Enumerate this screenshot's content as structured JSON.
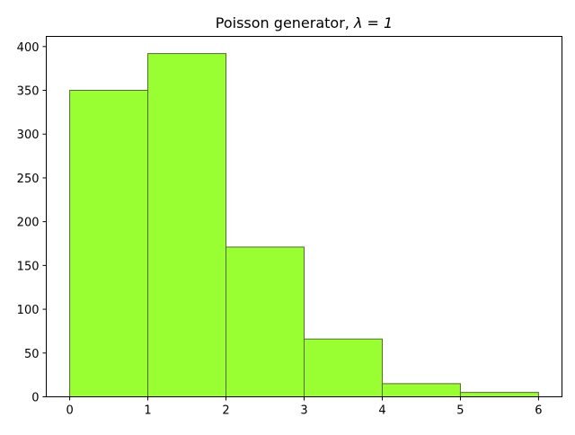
{
  "chart_data": {
    "type": "bar",
    "title_prefix": "Poisson generator, ",
    "title_math": "λ = 1",
    "xlabel": "",
    "ylabel": "",
    "bins": [
      {
        "x0": 0,
        "x1": 1,
        "value": 350
      },
      {
        "x0": 1,
        "x1": 2,
        "value": 392
      },
      {
        "x0": 2,
        "x1": 3,
        "value": 171
      },
      {
        "x0": 3,
        "x1": 4,
        "value": 66
      },
      {
        "x0": 4,
        "x1": 5,
        "value": 15
      },
      {
        "x0": 5,
        "x1": 6,
        "value": 5
      }
    ],
    "xlim": [
      -0.3,
      6.3
    ],
    "ylim": [
      0,
      411.6
    ],
    "xticks": [
      0,
      1,
      2,
      3,
      4,
      5,
      6
    ],
    "yticks": [
      0,
      50,
      100,
      150,
      200,
      250,
      300,
      350,
      400
    ],
    "grid": false,
    "legend": "none",
    "bar_color": "#99ff33",
    "edge_color": "#556b2f"
  }
}
